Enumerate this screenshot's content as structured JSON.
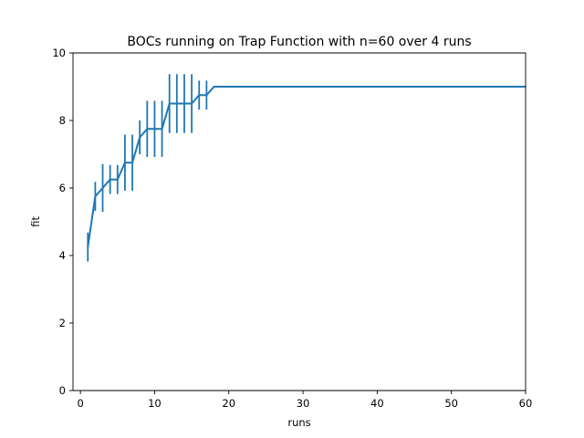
{
  "chart_data": {
    "type": "line",
    "title": "BOCs running on Trap Function with n=60 over 4 runs",
    "xlabel": "runs",
    "ylabel": "fit",
    "xlim": [
      -1,
      60
    ],
    "ylim": [
      0,
      10
    ],
    "xticks": [
      0,
      10,
      20,
      30,
      40,
      50,
      60
    ],
    "yticks": [
      0,
      2,
      4,
      6,
      8,
      10
    ],
    "grid": false,
    "color": "#1f77b4",
    "series": [
      {
        "x": [
          1,
          2,
          3,
          4,
          5,
          6,
          7,
          8,
          9,
          10,
          11,
          12,
          13,
          14,
          15,
          16,
          17,
          18,
          19,
          20,
          21,
          22,
          23,
          24,
          25,
          26,
          27,
          28,
          29,
          30,
          31,
          32,
          33,
          34,
          35,
          36,
          37,
          38,
          39,
          40,
          41,
          42,
          43,
          44,
          45,
          46,
          47,
          48,
          49,
          50,
          51,
          52,
          53,
          54,
          55,
          56,
          57,
          58,
          59,
          60
        ],
        "values": [
          4.25,
          5.75,
          6.0,
          6.25,
          6.25,
          6.75,
          6.75,
          7.5,
          7.75,
          7.75,
          7.75,
          8.5,
          8.5,
          8.5,
          8.5,
          8.75,
          8.75,
          9,
          9,
          9,
          9,
          9,
          9,
          9,
          9,
          9,
          9,
          9,
          9,
          9,
          9,
          9,
          9,
          9,
          9,
          9,
          9,
          9,
          9,
          9,
          9,
          9,
          9,
          9,
          9,
          9,
          9,
          9,
          9,
          9,
          9,
          9,
          9,
          9,
          9,
          9,
          9,
          9,
          9,
          9
        ],
        "error": [
          0.43,
          0.43,
          0.71,
          0.43,
          0.43,
          0.83,
          0.83,
          0.5,
          0.83,
          0.83,
          0.83,
          0.87,
          0.87,
          0.87,
          0.87,
          0.43,
          0.43,
          0,
          0,
          0,
          0,
          0,
          0,
          0,
          0,
          0,
          0,
          0,
          0,
          0,
          0,
          0,
          0,
          0,
          0,
          0,
          0,
          0,
          0,
          0,
          0,
          0,
          0,
          0,
          0,
          0,
          0,
          0,
          0,
          0,
          0,
          0,
          0,
          0,
          0,
          0,
          0,
          0,
          0,
          0
        ]
      }
    ]
  }
}
